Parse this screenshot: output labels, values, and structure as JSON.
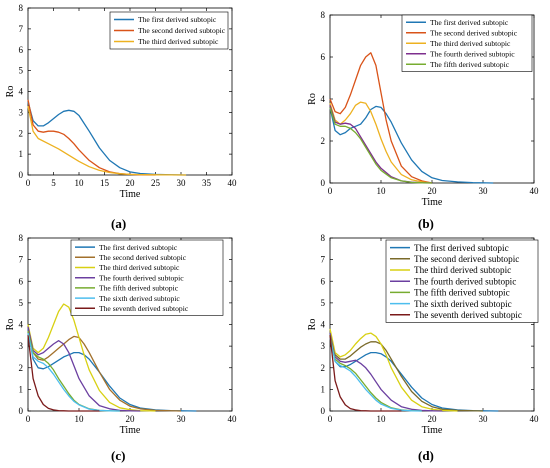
{
  "captions": [
    "(a)",
    "(b)",
    "(c)",
    "(d)"
  ],
  "chart_data": [
    {
      "type": "line",
      "xlabel": "Time",
      "ylabel": "Ro",
      "xlim": [
        0,
        40
      ],
      "ylim": [
        0,
        8
      ],
      "xticks": [
        0,
        5,
        10,
        15,
        20,
        25,
        30,
        35,
        40
      ],
      "yticks": [
        0,
        1,
        2,
        3,
        4,
        5,
        6,
        7,
        8
      ],
      "grid": false,
      "legend": "top-right",
      "series": [
        {
          "name": "The first derived subtopic",
          "color": "#1f77b4",
          "x": [
            0,
            1,
            2,
            3,
            4,
            5,
            6,
            7,
            8,
            9,
            10,
            12,
            14,
            16,
            18,
            20,
            22,
            25,
            28,
            31
          ],
          "y": [
            3.5,
            2.6,
            2.35,
            2.35,
            2.5,
            2.7,
            2.9,
            3.05,
            3.1,
            3.05,
            2.85,
            2.1,
            1.3,
            0.7,
            0.35,
            0.15,
            0.07,
            0.03,
            0.01,
            0
          ]
        },
        {
          "name": "The second derived subtopic",
          "color": "#d95319",
          "x": [
            0,
            1,
            2,
            3,
            4,
            5,
            6,
            7,
            8,
            9,
            10,
            12,
            14,
            16,
            18,
            20,
            22,
            25
          ],
          "y": [
            3.6,
            2.4,
            2.1,
            2.05,
            2.1,
            2.1,
            2.05,
            1.95,
            1.75,
            1.5,
            1.2,
            0.7,
            0.35,
            0.15,
            0.06,
            0.03,
            0.01,
            0
          ]
        },
        {
          "name": "The third derived subtopic",
          "color": "#edb120",
          "x": [
            0,
            1,
            2,
            4,
            6,
            8,
            10,
            12,
            14,
            16,
            18,
            20,
            22,
            25,
            28,
            31
          ],
          "y": [
            3.3,
            2.1,
            1.75,
            1.5,
            1.25,
            0.95,
            0.65,
            0.4,
            0.22,
            0.12,
            0.06,
            0.03,
            0.02,
            0.01,
            0.005,
            0
          ]
        }
      ]
    },
    {
      "type": "line",
      "xlabel": "Time",
      "ylabel": "Ro",
      "xlim": [
        0,
        40
      ],
      "ylim": [
        0,
        8
      ],
      "xticks": [
        0,
        10,
        20,
        30,
        40
      ],
      "yticks": [
        0,
        2,
        4,
        6,
        8
      ],
      "grid": false,
      "legend": "top-right",
      "series": [
        {
          "name": "The first derived subtopic",
          "color": "#1f77b4",
          "x": [
            0,
            1,
            2,
            3,
            4,
            5,
            6,
            7,
            8,
            9,
            10,
            11,
            12,
            14,
            16,
            18,
            20,
            22,
            25,
            28,
            32
          ],
          "y": [
            3.6,
            2.5,
            2.3,
            2.4,
            2.6,
            2.7,
            2.8,
            3.1,
            3.5,
            3.65,
            3.6,
            3.3,
            2.9,
            1.9,
            1.1,
            0.55,
            0.25,
            0.12,
            0.05,
            0.02,
            0
          ]
        },
        {
          "name": "The second derived subtopic",
          "color": "#d95319",
          "x": [
            0,
            1,
            2,
            3,
            4,
            5,
            6,
            7,
            8,
            9,
            10,
            11,
            12,
            14,
            16,
            18,
            20
          ],
          "y": [
            4.0,
            3.4,
            3.3,
            3.6,
            4.2,
            4.9,
            5.6,
            6.0,
            6.2,
            5.6,
            4.3,
            3.0,
            2.0,
            0.8,
            0.3,
            0.1,
            0
          ]
        },
        {
          "name": "The third derived subtopic",
          "color": "#edb120",
          "x": [
            0,
            1,
            2,
            3,
            4,
            5,
            6,
            7,
            8,
            9,
            10,
            11,
            12,
            14,
            16,
            18,
            20
          ],
          "y": [
            3.8,
            3.0,
            2.8,
            3.0,
            3.3,
            3.7,
            3.85,
            3.8,
            3.4,
            2.8,
            2.1,
            1.5,
            1.0,
            0.4,
            0.15,
            0.05,
            0
          ]
        },
        {
          "name": "The fourth derived subtopic",
          "color": "#7e2f8e",
          "x": [
            0,
            1,
            2,
            3,
            4,
            5,
            6,
            7,
            8,
            9,
            10,
            12,
            14,
            16,
            18,
            20
          ],
          "y": [
            3.7,
            2.9,
            2.8,
            2.85,
            2.8,
            2.6,
            2.2,
            1.8,
            1.4,
            1.0,
            0.7,
            0.3,
            0.1,
            0.04,
            0.01,
            0
          ]
        },
        {
          "name": "The fifth derived subtopic",
          "color": "#77ac30",
          "x": [
            0,
            1,
            2,
            3,
            4,
            5,
            6,
            7,
            8,
            9,
            10,
            12,
            14,
            16,
            18,
            20
          ],
          "y": [
            3.6,
            2.8,
            2.7,
            2.7,
            2.6,
            2.4,
            2.1,
            1.7,
            1.3,
            0.9,
            0.6,
            0.25,
            0.1,
            0.03,
            0.01,
            0
          ]
        }
      ]
    },
    {
      "type": "line",
      "xlabel": "Time",
      "ylabel": "Ro",
      "xlim": [
        0,
        40
      ],
      "ylim": [
        0,
        8
      ],
      "xticks": [
        0,
        10,
        20,
        30,
        40
      ],
      "yticks": [
        0,
        1,
        2,
        3,
        4,
        5,
        6,
        7,
        8
      ],
      "grid": false,
      "legend": "top-right",
      "series": [
        {
          "name": "The first derived subtopic",
          "color": "#1f77b4",
          "x": [
            0,
            1,
            2,
            3,
            4,
            5,
            6,
            7,
            8,
            9,
            10,
            11,
            12,
            14,
            16,
            18,
            20,
            22,
            25,
            28,
            33
          ],
          "y": [
            3.8,
            2.4,
            2.0,
            1.95,
            2.05,
            2.2,
            2.35,
            2.5,
            2.6,
            2.7,
            2.7,
            2.6,
            2.4,
            1.8,
            1.15,
            0.6,
            0.3,
            0.14,
            0.05,
            0.02,
            0
          ]
        },
        {
          "name": "The second derived subtopic",
          "color": "#a2702b",
          "x": [
            0,
            1,
            2,
            3,
            4,
            5,
            6,
            7,
            8,
            9,
            10,
            11,
            12,
            14,
            16,
            18,
            20,
            22,
            25,
            30
          ],
          "y": [
            3.9,
            2.7,
            2.4,
            2.35,
            2.5,
            2.7,
            2.9,
            3.1,
            3.3,
            3.45,
            3.4,
            3.1,
            2.7,
            1.8,
            1.0,
            0.5,
            0.22,
            0.1,
            0.03,
            0
          ]
        },
        {
          "name": "The third derived subtopic",
          "color": "#d8d012",
          "x": [
            0,
            1,
            2,
            3,
            4,
            5,
            6,
            7,
            8,
            9,
            10,
            11,
            12,
            14,
            16,
            18,
            20,
            22,
            25
          ],
          "y": [
            4.0,
            2.9,
            2.7,
            2.9,
            3.4,
            4.0,
            4.6,
            4.95,
            4.8,
            4.2,
            3.4,
            2.6,
            1.9,
            0.95,
            0.4,
            0.15,
            0.06,
            0.02,
            0
          ]
        },
        {
          "name": "The fourth derived subtopic",
          "color": "#6b3fa0",
          "x": [
            0,
            1,
            2,
            3,
            4,
            5,
            6,
            7,
            8,
            9,
            10,
            12,
            14,
            16,
            18,
            20,
            22
          ],
          "y": [
            3.9,
            2.8,
            2.6,
            2.7,
            2.9,
            3.1,
            3.25,
            3.1,
            2.7,
            2.1,
            1.5,
            0.7,
            0.25,
            0.1,
            0.03,
            0.01,
            0
          ]
        },
        {
          "name": "The fifth derived subtopic",
          "color": "#77ac30",
          "x": [
            0,
            1,
            2,
            3,
            4,
            5,
            6,
            7,
            8,
            9,
            10,
            12,
            14,
            16,
            18
          ],
          "y": [
            3.7,
            2.7,
            2.5,
            2.4,
            2.2,
            1.9,
            1.5,
            1.15,
            0.8,
            0.5,
            0.3,
            0.1,
            0.03,
            0.01,
            0
          ]
        },
        {
          "name": "The sixth derived subtopic",
          "color": "#4dbeee",
          "x": [
            0,
            1,
            2,
            3,
            4,
            5,
            6,
            7,
            8,
            9,
            10,
            12,
            14,
            16,
            18
          ],
          "y": [
            3.6,
            2.5,
            2.3,
            2.2,
            2.0,
            1.7,
            1.35,
            1.0,
            0.7,
            0.45,
            0.28,
            0.09,
            0.03,
            0.01,
            0
          ]
        },
        {
          "name": "The seventh derived subtopic",
          "color": "#7a1a1a",
          "x": [
            0,
            1,
            2,
            3,
            4,
            5,
            6,
            7,
            8,
            9,
            10,
            12,
            14
          ],
          "y": [
            3.5,
            1.5,
            0.7,
            0.3,
            0.12,
            0.05,
            0.02,
            0.01,
            0,
            0,
            0,
            0,
            0
          ]
        }
      ]
    },
    {
      "type": "line",
      "xlabel": "Time",
      "ylabel": "Ro",
      "xlim": [
        0,
        40
      ],
      "ylim": [
        0,
        8
      ],
      "xticks": [
        0,
        10,
        20,
        30,
        40
      ],
      "yticks": [
        0,
        1,
        2,
        3,
        4,
        5,
        6,
        7,
        8
      ],
      "grid": false,
      "legend": "top-right",
      "series": [
        {
          "name": "The first derived subtopic",
          "color": "#1f77b4",
          "x": [
            0,
            1,
            2,
            3,
            4,
            5,
            6,
            7,
            8,
            9,
            10,
            11,
            12,
            14,
            16,
            18,
            20,
            22,
            25,
            28,
            33
          ],
          "y": [
            3.6,
            2.3,
            2.05,
            2.05,
            2.15,
            2.3,
            2.45,
            2.6,
            2.7,
            2.7,
            2.65,
            2.5,
            2.3,
            1.7,
            1.1,
            0.6,
            0.3,
            0.14,
            0.05,
            0.02,
            0
          ]
        },
        {
          "name": "The second derived subtopic",
          "color": "#7a6a2a",
          "x": [
            0,
            1,
            2,
            3,
            4,
            5,
            6,
            7,
            8,
            9,
            10,
            11,
            12,
            14,
            16,
            18,
            20,
            22,
            25,
            30
          ],
          "y": [
            3.7,
            2.6,
            2.4,
            2.4,
            2.55,
            2.75,
            2.95,
            3.1,
            3.2,
            3.2,
            3.1,
            2.8,
            2.4,
            1.6,
            0.9,
            0.45,
            0.2,
            0.08,
            0.03,
            0
          ]
        },
        {
          "name": "The third derived subtopic",
          "color": "#d8d012",
          "x": [
            0,
            1,
            2,
            3,
            4,
            5,
            6,
            7,
            8,
            9,
            10,
            11,
            12,
            14,
            16,
            18,
            20,
            22,
            25
          ],
          "y": [
            3.8,
            2.7,
            2.5,
            2.6,
            2.8,
            3.1,
            3.35,
            3.55,
            3.6,
            3.45,
            3.1,
            2.6,
            2.0,
            1.1,
            0.5,
            0.2,
            0.08,
            0.03,
            0
          ]
        },
        {
          "name": "The fourth derived subtopic",
          "color": "#6b3fa0",
          "x": [
            0,
            1,
            2,
            3,
            4,
            5,
            6,
            7,
            8,
            9,
            10,
            12,
            14,
            16,
            18,
            20,
            22
          ],
          "y": [
            3.6,
            2.5,
            2.3,
            2.25,
            2.3,
            2.35,
            2.2,
            2.0,
            1.7,
            1.35,
            1.0,
            0.5,
            0.2,
            0.08,
            0.03,
            0.01,
            0
          ]
        },
        {
          "name": "The fifth derived subtopic",
          "color": "#77ac30",
          "x": [
            0,
            1,
            2,
            3,
            4,
            5,
            6,
            7,
            8,
            9,
            10,
            12,
            14,
            16,
            18
          ],
          "y": [
            3.5,
            2.4,
            2.2,
            2.1,
            1.95,
            1.75,
            1.45,
            1.15,
            0.85,
            0.6,
            0.4,
            0.15,
            0.05,
            0.02,
            0
          ]
        },
        {
          "name": "The sixth derived subtopic",
          "color": "#4dbeee",
          "x": [
            0,
            1,
            2,
            3,
            4,
            5,
            6,
            7,
            8,
            9,
            10,
            12,
            14,
            16,
            18
          ],
          "y": [
            3.4,
            2.3,
            2.1,
            2.0,
            1.85,
            1.6,
            1.3,
            1.0,
            0.75,
            0.5,
            0.32,
            0.12,
            0.04,
            0.01,
            0
          ]
        },
        {
          "name": "The seventh derived subtopic",
          "color": "#7a1a1a",
          "x": [
            0,
            1,
            2,
            3,
            4,
            5,
            6,
            7,
            8,
            9,
            10,
            12,
            14
          ],
          "y": [
            3.5,
            1.4,
            0.65,
            0.28,
            0.11,
            0.05,
            0.02,
            0.01,
            0,
            0,
            0,
            0,
            0
          ]
        }
      ]
    }
  ]
}
